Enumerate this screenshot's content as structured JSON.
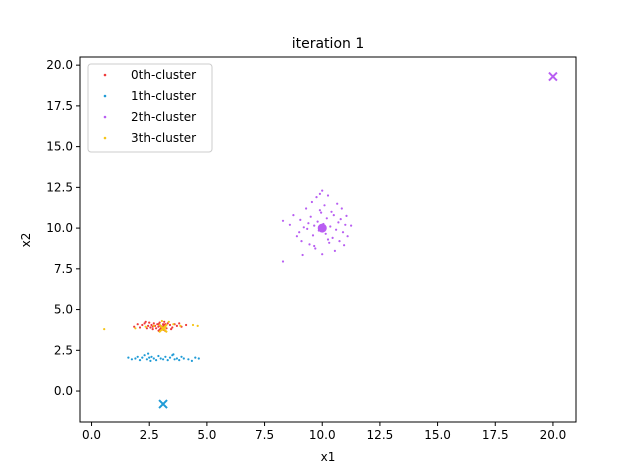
{
  "chart_data": {
    "type": "scatter",
    "title": "iteration 1",
    "xlabel": "x1",
    "ylabel": "x2",
    "xlim": [
      -0.5,
      21.0
    ],
    "ylim": [
      -1.9,
      20.5
    ],
    "xticks": [
      0.0,
      2.5,
      5.0,
      7.5,
      10.0,
      12.5,
      15.0,
      17.5,
      20.0
    ],
    "yticks": [
      0.0,
      2.5,
      5.0,
      7.5,
      10.0,
      12.5,
      15.0,
      17.5,
      20.0
    ],
    "tick_labels_x": [
      "0.0",
      "2.5",
      "5.0",
      "7.5",
      "10.0",
      "12.5",
      "15.0",
      "17.5",
      "20.0"
    ],
    "tick_labels_y": [
      "0.0",
      "2.5",
      "5.0",
      "7.5",
      "10.0",
      "12.5",
      "15.0",
      "17.5",
      "20.0"
    ],
    "legend_position": "upper-left",
    "series": [
      {
        "name": "0th-cluster",
        "color": "#ef3b3b",
        "points": [
          [
            1.85,
            3.95
          ],
          [
            2.0,
            4.1
          ],
          [
            2.1,
            3.9
          ],
          [
            2.2,
            4.05
          ],
          [
            2.3,
            4.15
          ],
          [
            2.4,
            3.85
          ],
          [
            2.45,
            4.0
          ],
          [
            2.5,
            4.2
          ],
          [
            2.55,
            3.9
          ],
          [
            2.6,
            4.05
          ],
          [
            2.65,
            3.95
          ],
          [
            2.7,
            4.15
          ],
          [
            2.75,
            4.0
          ],
          [
            2.8,
            3.85
          ],
          [
            2.85,
            4.1
          ],
          [
            2.9,
            3.95
          ],
          [
            2.95,
            4.2
          ],
          [
            3.0,
            4.0
          ],
          [
            3.05,
            3.9
          ],
          [
            3.1,
            4.1
          ],
          [
            3.2,
            4.0
          ],
          [
            3.25,
            3.85
          ],
          [
            3.3,
            4.15
          ],
          [
            3.4,
            4.05
          ],
          [
            3.5,
            3.9
          ],
          [
            3.6,
            4.1
          ],
          [
            3.7,
            4.0
          ],
          [
            3.8,
            4.15
          ],
          [
            3.9,
            3.95
          ],
          [
            4.1,
            4.05
          ],
          [
            2.35,
            4.25
          ],
          [
            2.65,
            3.8
          ],
          [
            3.15,
            4.25
          ],
          [
            3.45,
            3.8
          ]
        ],
        "centroid": [
          3.05,
          3.9
        ],
        "centroid_marker": "x"
      },
      {
        "name": "1th-cluster",
        "color": "#1f9bd6",
        "points": [
          [
            1.6,
            2.05
          ],
          [
            1.75,
            1.95
          ],
          [
            1.9,
            2.0
          ],
          [
            2.0,
            2.1
          ],
          [
            2.1,
            1.9
          ],
          [
            2.2,
            2.05
          ],
          [
            2.3,
            2.2
          ],
          [
            2.4,
            1.95
          ],
          [
            2.5,
            2.05
          ],
          [
            2.55,
            1.85
          ],
          [
            2.6,
            2.1
          ],
          [
            2.7,
            2.0
          ],
          [
            2.8,
            1.9
          ],
          [
            2.9,
            2.15
          ],
          [
            3.0,
            2.0
          ],
          [
            3.1,
            1.95
          ],
          [
            3.2,
            2.1
          ],
          [
            3.3,
            1.9
          ],
          [
            3.4,
            2.05
          ],
          [
            3.5,
            2.2
          ],
          [
            3.6,
            1.95
          ],
          [
            3.7,
            2.0
          ],
          [
            3.8,
            1.9
          ],
          [
            3.9,
            2.1
          ],
          [
            4.0,
            2.0
          ],
          [
            4.2,
            1.95
          ],
          [
            4.35,
            1.85
          ],
          [
            4.5,
            2.05
          ],
          [
            4.65,
            2.0
          ],
          [
            2.45,
            2.3
          ],
          [
            3.55,
            2.25
          ]
        ],
        "centroid": [
          3.1,
          -0.8
        ],
        "centroid_marker": "x"
      },
      {
        "name": "2th-cluster",
        "color": "#b85ef2",
        "points": [
          [
            8.3,
            7.95
          ],
          [
            8.3,
            10.45
          ],
          [
            8.6,
            10.2
          ],
          [
            8.75,
            10.8
          ],
          [
            8.9,
            9.5
          ],
          [
            9.0,
            9.75
          ],
          [
            9.05,
            10.5
          ],
          [
            9.1,
            9.2
          ],
          [
            9.15,
            8.35
          ],
          [
            9.2,
            10.05
          ],
          [
            9.3,
            11.2
          ],
          [
            9.35,
            9.95
          ],
          [
            9.4,
            10.3
          ],
          [
            9.45,
            9.0
          ],
          [
            9.5,
            10.7
          ],
          [
            9.55,
            11.6
          ],
          [
            9.6,
            9.55
          ],
          [
            9.65,
            10.15
          ],
          [
            9.7,
            8.75
          ],
          [
            9.75,
            11.9
          ],
          [
            9.8,
            10.4
          ],
          [
            9.85,
            9.85
          ],
          [
            9.9,
            12.1
          ],
          [
            9.95,
            10.95
          ],
          [
            10.0,
            8.4
          ],
          [
            10.05,
            10.25
          ],
          [
            10.1,
            11.4
          ],
          [
            10.15,
            9.65
          ],
          [
            10.2,
            10.6
          ],
          [
            10.25,
            12.0
          ],
          [
            10.3,
            9.1
          ],
          [
            10.35,
            10.1
          ],
          [
            10.4,
            11.0
          ],
          [
            10.45,
            9.4
          ],
          [
            10.5,
            10.8
          ],
          [
            10.55,
            8.6
          ],
          [
            10.6,
            9.9
          ],
          [
            10.65,
            11.5
          ],
          [
            10.7,
            10.35
          ],
          [
            10.75,
            9.2
          ],
          [
            10.8,
            10.55
          ],
          [
            10.85,
            11.2
          ],
          [
            10.9,
            9.75
          ],
          [
            10.95,
            8.95
          ],
          [
            11.0,
            10.2
          ],
          [
            11.05,
            10.75
          ],
          [
            11.1,
            9.5
          ],
          [
            11.25,
            10.15
          ],
          [
            9.65,
            8.9
          ],
          [
            10.25,
            9.3
          ],
          [
            9.9,
            11.1
          ],
          [
            10.0,
            12.3
          ]
        ],
        "centroid": [
          10.0,
          10.0
        ],
        "centroid_marker": "o",
        "extra_centroid": [
          20.0,
          19.3
        ]
      },
      {
        "name": "3th-cluster",
        "color": "#f5c518",
        "points": [
          [
            0.55,
            3.8
          ],
          [
            1.9,
            3.85
          ],
          [
            2.35,
            3.95
          ],
          [
            2.95,
            4.05
          ],
          [
            3.05,
            4.3
          ],
          [
            3.2,
            3.9
          ],
          [
            3.35,
            4.25
          ],
          [
            3.55,
            4.1
          ],
          [
            3.85,
            4.0
          ],
          [
            4.4,
            4.05
          ],
          [
            4.6,
            4.0
          ],
          [
            2.7,
            4.0
          ],
          [
            3.1,
            3.75
          ]
        ],
        "centroid": [
          3.1,
          3.85
        ],
        "centroid_marker": "x"
      }
    ]
  }
}
